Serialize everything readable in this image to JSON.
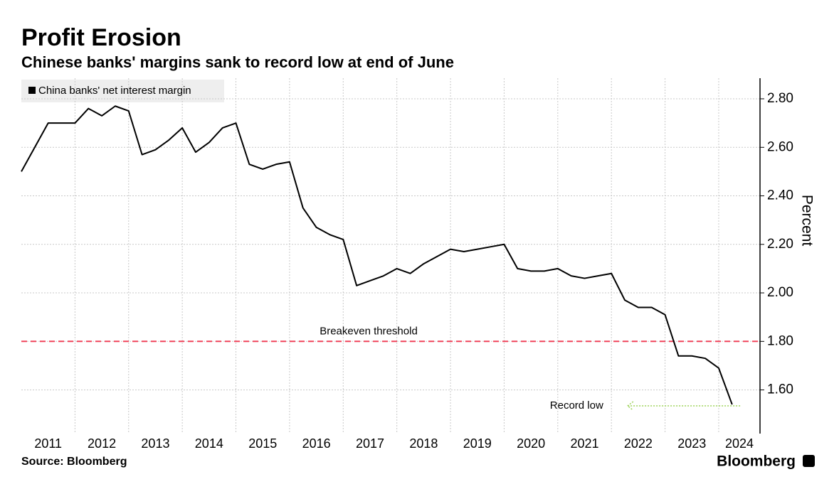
{
  "chart_data": {
    "type": "line",
    "title": "Profit Erosion",
    "subtitle": "Chinese banks' margins sank to record low at end of June",
    "y_label": "Percent",
    "source": "Source: Bloomberg",
    "brand": "Bloomberg",
    "x": [
      2011,
      2011.25,
      2011.5,
      2011.75,
      2012,
      2012.25,
      2012.5,
      2012.75,
      2013,
      2013.25,
      2013.5,
      2013.75,
      2014,
      2014.25,
      2014.5,
      2014.75,
      2015,
      2015.25,
      2015.5,
      2015.75,
      2016,
      2016.25,
      2016.5,
      2016.75,
      2017,
      2017.25,
      2017.5,
      2017.75,
      2018,
      2018.25,
      2018.5,
      2018.75,
      2019,
      2019.25,
      2019.5,
      2019.75,
      2020,
      2020.25,
      2020.5,
      2020.75,
      2021,
      2021.25,
      2021.5,
      2021.75,
      2022,
      2022.25,
      2022.5,
      2022.75,
      2023,
      2023.25,
      2023.5,
      2023.75,
      2024,
      2024.25
    ],
    "series": [
      {
        "name": "China banks' net interest margin",
        "color": "#000000",
        "values": [
          2.5,
          2.6,
          2.7,
          2.7,
          2.7,
          2.76,
          2.73,
          2.77,
          2.75,
          2.57,
          2.59,
          2.63,
          2.68,
          2.58,
          2.62,
          2.68,
          2.7,
          2.53,
          2.51,
          2.53,
          2.54,
          2.35,
          2.27,
          2.24,
          2.22,
          2.03,
          2.05,
          2.07,
          2.1,
          2.08,
          2.12,
          2.15,
          2.18,
          2.17,
          2.18,
          2.19,
          2.2,
          2.1,
          2.09,
          2.09,
          2.1,
          2.07,
          2.06,
          2.07,
          2.08,
          1.97,
          1.94,
          1.94,
          1.91,
          1.74,
          1.74,
          1.73,
          1.69,
          1.54
        ]
      }
    ],
    "xlim": [
      2011,
      2024.77
    ],
    "xticks": [
      {
        "value": 2011,
        "label": "2011"
      },
      {
        "value": 2012,
        "label": "2012"
      },
      {
        "value": 2013,
        "label": "2013"
      },
      {
        "value": 2014,
        "label": "2014"
      },
      {
        "value": 2015,
        "label": "2015"
      },
      {
        "value": 2016,
        "label": "2016"
      },
      {
        "value": 2017,
        "label": "2017"
      },
      {
        "value": 2018,
        "label": "2018"
      },
      {
        "value": 2019,
        "label": "2019"
      },
      {
        "value": 2020,
        "label": "2020"
      },
      {
        "value": 2021,
        "label": "2021"
      },
      {
        "value": 2022,
        "label": "2022"
      },
      {
        "value": 2023,
        "label": "2023"
      },
      {
        "value": 2024,
        "label": "2024"
      }
    ],
    "ylim": [
      1.42,
      2.885
    ],
    "yticks": [
      {
        "value": 1.6,
        "label": "1.60"
      },
      {
        "value": 1.8,
        "label": "1.80"
      },
      {
        "value": 2.0,
        "label": "2.00"
      },
      {
        "value": 2.2,
        "label": "2.20"
      },
      {
        "value": 2.4,
        "label": "2.40"
      },
      {
        "value": 2.6,
        "label": "2.60"
      },
      {
        "value": 2.8,
        "label": "2.80"
      }
    ],
    "grid": true,
    "annotations": [
      {
        "text": "Breakeven threshold",
        "y": 1.8,
        "color": "#f0435a"
      },
      {
        "text": "Record low",
        "y": 1.54,
        "color": "#9ed35a"
      }
    ]
  }
}
